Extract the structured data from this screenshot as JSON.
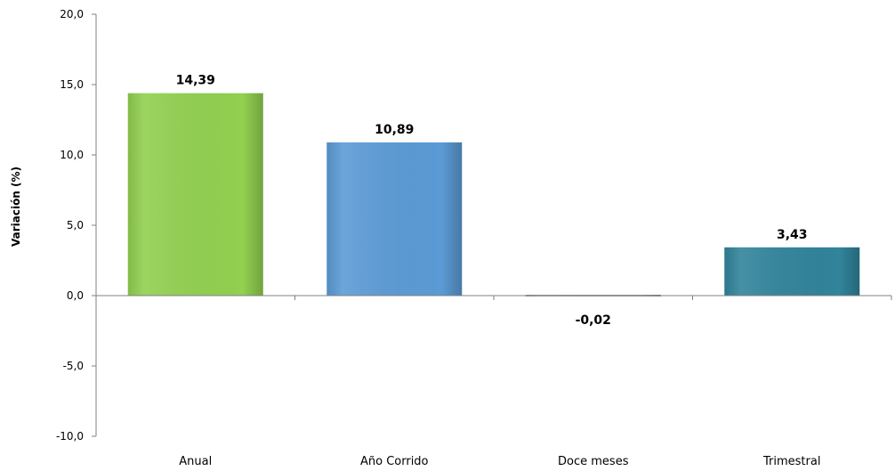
{
  "chart_data": {
    "type": "bar",
    "categories": [
      "Anual",
      "Año Corrido",
      "Doce meses",
      "Trimestral"
    ],
    "values": [
      14.39,
      10.89,
      -0.02,
      3.43
    ],
    "value_labels": [
      "14,39",
      "10,89",
      "-0,02",
      "3,43"
    ],
    "ylabel": "Variación (%)",
    "ylim": [
      -10,
      20
    ],
    "yticks": [
      20,
      15,
      10,
      5,
      0,
      -5,
      -10
    ],
    "ytick_labels": [
      "20,0",
      "15,0",
      "10,0",
      "5,0",
      "0,0",
      "-5,0",
      "-10,0"
    ],
    "colors": [
      "#92d050",
      "#5b9bd5",
      "#a6a6a6",
      "#31849b"
    ],
    "grid": false,
    "legend": "none"
  }
}
